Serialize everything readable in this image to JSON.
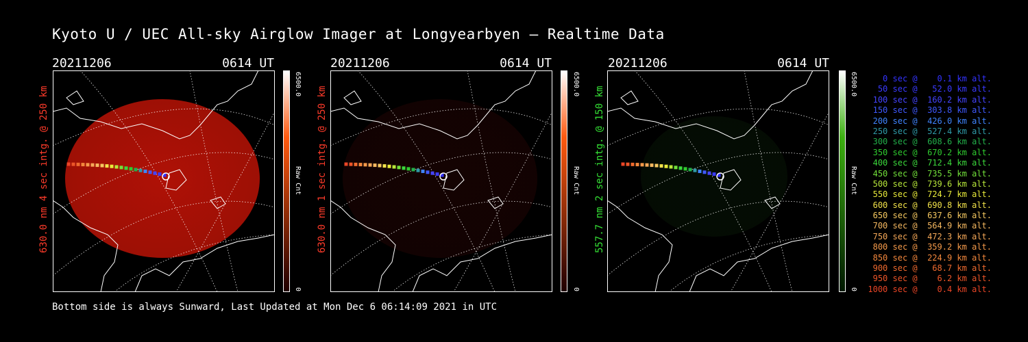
{
  "title": "Kyoto U / UEC All-sky Airglow Imager at Longyearbyen — Realtime Data",
  "footer": "Bottom side is always Sunward, Last Updated at Mon Dec  6 06:14:09 2021 in UTC",
  "panels": [
    {
      "date": "20211206",
      "time": "0614 UT",
      "side_label": "630.0 nm 4 sec intg. @ 250 km",
      "label_color": "#ff3b2a",
      "cbar_max": "6500.0",
      "cbar_min": "0",
      "cbar_unit": "Raw Cnt",
      "cbar_color": "#ff5a10",
      "image_color": "#b81206",
      "image_level": 0.95
    },
    {
      "date": "20211206",
      "time": "0614 UT",
      "side_label": "630.0 nm 1 sec intg. @ 250 km",
      "label_color": "#ff3b2a",
      "cbar_max": "6500.0",
      "cbar_min": "0",
      "cbar_unit": "Raw Cnt",
      "cbar_color": "#ff5a10",
      "image_color": "#3a0805",
      "image_level": 0.35
    },
    {
      "date": "20211206",
      "time": "0614 UT",
      "side_label": "557.7 nm 2 sec intg. @ 150 km",
      "label_color": "#35e235",
      "cbar_max": "6500.0",
      "cbar_min": "0",
      "cbar_unit": "Raw Cnt",
      "cbar_color": "#3cb010",
      "image_color": "#0f2a0c",
      "image_level": 0.3
    }
  ],
  "legend": [
    {
      "text": "   0 sec @    0.1 km alt.",
      "color": "#3333ff"
    },
    {
      "text": "  50 sec @   52.0 km alt.",
      "color": "#3a3aff"
    },
    {
      "text": " 100 sec @  160.2 km alt.",
      "color": "#4444ff"
    },
    {
      "text": " 150 sec @  303.8 km alt.",
      "color": "#3f59ff"
    },
    {
      "text": " 200 sec @  426.0 km alt.",
      "color": "#3f84ff"
    },
    {
      "text": " 250 sec @  527.4 km alt.",
      "color": "#2f9aa8"
    },
    {
      "text": " 300 sec @  608.6 km alt.",
      "color": "#23b04a"
    },
    {
      "text": " 350 sec @  670.2 km alt.",
      "color": "#2fcc2f"
    },
    {
      "text": " 400 sec @  712.4 km alt.",
      "color": "#3bd83b"
    },
    {
      "text": " 450 sec @  735.5 km alt.",
      "color": "#72e03a"
    },
    {
      "text": " 500 sec @  739.6 km alt.",
      "color": "#b8e83a"
    },
    {
      "text": " 550 sec @  724.7 km alt.",
      "color": "#e8ea3a"
    },
    {
      "text": " 600 sec @  690.8 km alt.",
      "color": "#f2e24a"
    },
    {
      "text": " 650 sec @  637.6 km alt.",
      "color": "#f5c860"
    },
    {
      "text": " 700 sec @  564.9 km alt.",
      "color": "#f5b860"
    },
    {
      "text": " 750 sec @  472.3 km alt.",
      "color": "#f5a858"
    },
    {
      "text": " 800 sec @  359.2 km alt.",
      "color": "#f59a4a"
    },
    {
      "text": " 850 sec @  224.9 km alt.",
      "color": "#f2873c"
    },
    {
      "text": " 900 sec @   68.7 km alt.",
      "color": "#ef6a2e"
    },
    {
      "text": " 950 sec @    6.2 km alt.",
      "color": "#ec5528"
    },
    {
      "text": "1000 sec @    0.4 km alt.",
      "color": "#ea4526"
    }
  ]
}
